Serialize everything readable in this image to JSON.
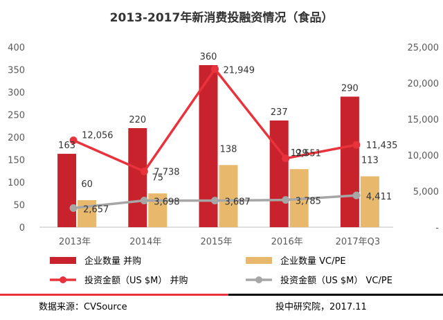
{
  "chart_data": {
    "type": "bar",
    "title": "2013-2017年新消费投融资情况（食品）",
    "categories": [
      "2013年",
      "2014年",
      "2015年",
      "2016年",
      "2017年Q3"
    ],
    "y_left": {
      "min": 0,
      "max": 400,
      "step": 50,
      "ticks": [
        "0",
        "50",
        "100",
        "150",
        "200",
        "250",
        "300",
        "350",
        "400"
      ]
    },
    "y_right": {
      "min": 0,
      "max": 25000,
      "step": 5000,
      "ticks": [
        "-",
        "5,000",
        "10,000",
        "15,000",
        "20,000",
        "25,000"
      ]
    },
    "grid": false,
    "legend_position": "bottom",
    "series": [
      {
        "name": "企业数量 并购",
        "type": "bar",
        "axis": "left",
        "color": "#c8232c",
        "values": [
          163,
          220,
          360,
          237,
          290
        ],
        "labels": [
          "163",
          "220",
          "360",
          "237",
          "290"
        ]
      },
      {
        "name": "企业数量 VC/PE",
        "type": "bar",
        "axis": "left",
        "color": "#e8b86d",
        "values": [
          60,
          75,
          138,
          129,
          113
        ],
        "labels": [
          "60",
          "75",
          "138",
          "129",
          "113"
        ]
      },
      {
        "name": "投资金额（US $M） 并购",
        "type": "line",
        "axis": "right",
        "color": "#e8323c",
        "values": [
          12056,
          7738,
          21949,
          9551,
          11435
        ],
        "labels": [
          "12,056",
          "7,738",
          "21,949",
          "9,551",
          "11,435"
        ]
      },
      {
        "name": "投资金额（US $M） VC/PE",
        "type": "line",
        "axis": "right",
        "color": "#a6a6a6",
        "values": [
          2657,
          3698,
          3687,
          3785,
          4411
        ],
        "labels": [
          "2,657",
          "3,698",
          "3,687",
          "3,785",
          "4,411"
        ]
      }
    ]
  },
  "footer": {
    "source": "数据来源：CVSource",
    "credit": "投中研究院，2017.11",
    "bar_colors": [
      "#e8323c",
      "#000000"
    ]
  }
}
